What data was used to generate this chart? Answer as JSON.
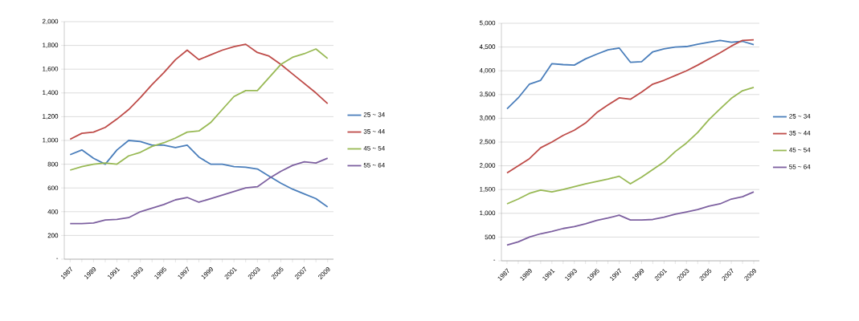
{
  "chart_data": [
    {
      "type": "line",
      "x": [
        1987,
        1988,
        1989,
        1990,
        1991,
        1992,
        1993,
        1994,
        1995,
        1996,
        1997,
        1998,
        1999,
        2000,
        2001,
        2002,
        2003,
        2004,
        2005,
        2006,
        2007,
        2008,
        2009
      ],
      "xlim": [
        1986.5,
        2009.5
      ],
      "xticks": [
        1987,
        {
          "value": 1988,
          "label": null
        },
        1989,
        {
          "value": 1990,
          "label": null
        },
        1991,
        {
          "value": 1992,
          "label": null
        },
        1993,
        {
          "value": 1994,
          "label": null
        },
        1995,
        {
          "value": 1996,
          "label": null
        },
        1997,
        {
          "value": 1998,
          "label": null
        },
        1999,
        {
          "value": 2000,
          "label": null
        },
        2001,
        {
          "value": 2002,
          "label": null
        },
        2003,
        {
          "value": 2004,
          "label": null
        },
        2005,
        {
          "value": 2006,
          "label": null
        },
        2007,
        {
          "value": 2008,
          "label": null
        },
        2009
      ],
      "ylim": [
        0,
        2000
      ],
      "yticks": [
        {
          "value": 0,
          "label": "-"
        },
        200,
        400,
        600,
        800,
        {
          "value": 1000,
          "label": "1,000"
        },
        {
          "value": 1200,
          "label": "1,200"
        },
        {
          "value": 1400,
          "label": "1,400"
        },
        {
          "value": 1600,
          "label": "1,600"
        },
        {
          "value": 1800,
          "label": "1,800"
        },
        {
          "value": 2000,
          "label": "2,000"
        }
      ],
      "grid": "y",
      "legend": "right",
      "marker": "none",
      "line_style": "solid",
      "series": [
        {
          "name": "25 ~ 34",
          "color": "#4a7ebb",
          "values": [
            880,
            920,
            850,
            800,
            920,
            1000,
            990,
            960,
            960,
            940,
            960,
            860,
            800,
            800,
            780,
            775,
            760,
            700,
            640,
            590,
            550,
            510,
            440
          ]
        },
        {
          "name": "35 ~ 44",
          "color": "#be4b48",
          "values": [
            1010,
            1060,
            1070,
            1110,
            1180,
            1260,
            1360,
            1470,
            1570,
            1680,
            1760,
            1680,
            1720,
            1760,
            1790,
            1810,
            1740,
            1710,
            1640,
            1560,
            1480,
            1400,
            1310
          ]
        },
        {
          "name": "45 ~ 54",
          "color": "#98b954",
          "values": [
            750,
            780,
            800,
            810,
            800,
            870,
            900,
            950,
            980,
            1020,
            1070,
            1080,
            1150,
            1260,
            1370,
            1420,
            1420,
            1530,
            1640,
            1700,
            1730,
            1770,
            1690
          ]
        },
        {
          "name": "55 ~ 64",
          "color": "#7d60a0",
          "values": [
            300,
            300,
            305,
            330,
            335,
            350,
            400,
            430,
            460,
            500,
            520,
            480,
            510,
            540,
            570,
            600,
            610,
            680,
            740,
            790,
            820,
            810,
            850
          ]
        }
      ]
    },
    {
      "type": "line",
      "x": [
        1987,
        1988,
        1989,
        1990,
        1991,
        1992,
        1993,
        1994,
        1995,
        1996,
        1997,
        1998,
        1999,
        2000,
        2001,
        2002,
        2003,
        2004,
        2005,
        2006,
        2007,
        2008,
        2009
      ],
      "xlim": [
        1986.5,
        2009.5
      ],
      "xticks": [
        1987,
        {
          "value": 1988,
          "label": null
        },
        1989,
        {
          "value": 1990,
          "label": null
        },
        1991,
        {
          "value": 1992,
          "label": null
        },
        1993,
        {
          "value": 1994,
          "label": null
        },
        1995,
        {
          "value": 1996,
          "label": null
        },
        1997,
        {
          "value": 1998,
          "label": null
        },
        1999,
        {
          "value": 2000,
          "label": null
        },
        2001,
        {
          "value": 2002,
          "label": null
        },
        2003,
        {
          "value": 2004,
          "label": null
        },
        2005,
        {
          "value": 2006,
          "label": null
        },
        2007,
        {
          "value": 2008,
          "label": null
        },
        2009
      ],
      "ylim": [
        0,
        5000
      ],
      "yticks": [
        {
          "value": 0,
          "label": "-"
        },
        500,
        {
          "value": 1000,
          "label": "1,000"
        },
        {
          "value": 1500,
          "label": "1,500"
        },
        {
          "value": 2000,
          "label": "2,000"
        },
        {
          "value": 2500,
          "label": "2,500"
        },
        {
          "value": 3000,
          "label": "3,000"
        },
        {
          "value": 3500,
          "label": "3,500"
        },
        {
          "value": 4000,
          "label": "4,000"
        },
        {
          "value": 4500,
          "label": "4,500"
        },
        {
          "value": 5000,
          "label": "5,000"
        }
      ],
      "grid": "y",
      "legend": "right",
      "marker": "none",
      "line_style": "solid",
      "series": [
        {
          "name": "25 ~ 34",
          "color": "#4a7ebb",
          "values": [
            3200,
            3430,
            3720,
            3800,
            4150,
            4130,
            4120,
            4250,
            4350,
            4440,
            4480,
            4180,
            4190,
            4400,
            4460,
            4500,
            4510,
            4560,
            4600,
            4640,
            4600,
            4620,
            4550
          ]
        },
        {
          "name": "35 ~ 44",
          "color": "#be4b48",
          "values": [
            1850,
            2000,
            2150,
            2380,
            2500,
            2640,
            2750,
            2900,
            3120,
            3280,
            3430,
            3400,
            3550,
            3720,
            3800,
            3900,
            4000,
            4120,
            4250,
            4380,
            4520,
            4640,
            4650
          ]
        },
        {
          "name": "45 ~ 54",
          "color": "#98b954",
          "values": [
            1200,
            1300,
            1420,
            1490,
            1450,
            1500,
            1560,
            1620,
            1670,
            1720,
            1780,
            1620,
            1760,
            1920,
            2080,
            2300,
            2480,
            2700,
            2970,
            3200,
            3420,
            3580,
            3650
          ]
        },
        {
          "name": "55 ~ 64",
          "color": "#7d60a0",
          "values": [
            330,
            400,
            500,
            570,
            620,
            680,
            720,
            780,
            850,
            900,
            960,
            860,
            860,
            870,
            920,
            980,
            1030,
            1080,
            1150,
            1200,
            1300,
            1350,
            1450
          ]
        }
      ]
    }
  ]
}
